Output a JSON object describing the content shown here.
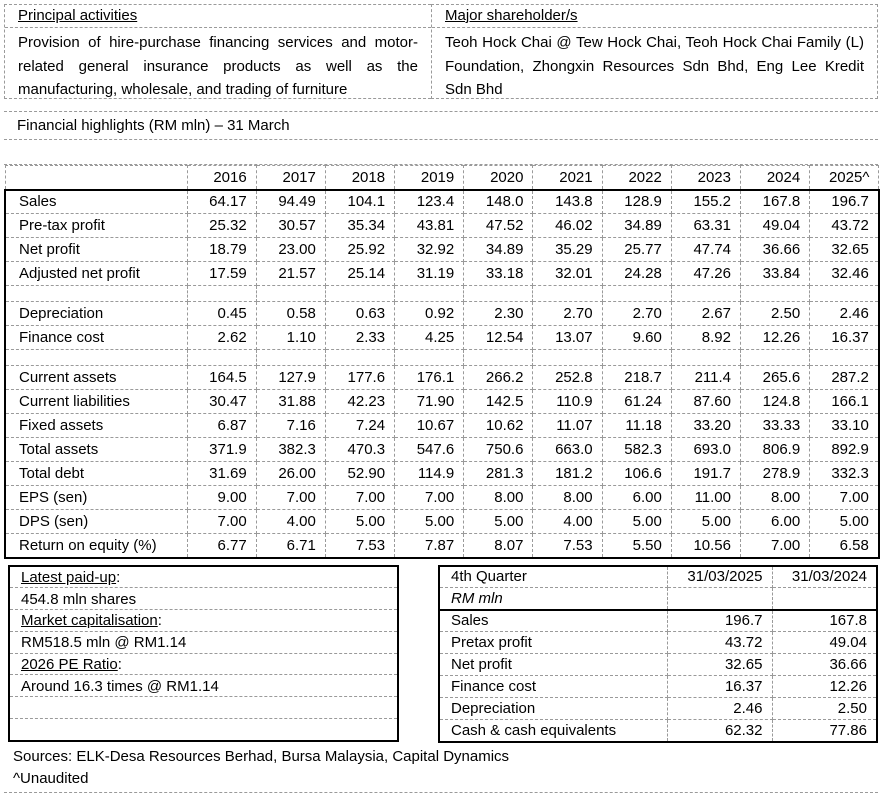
{
  "top": {
    "principal": {
      "title": "Principal activities",
      "body": "Provision of hire-purchase financing services and motor-related general insurance products as well as the manufacturing, wholesale, and trading of furniture"
    },
    "shareholders": {
      "title": "Major shareholder/s",
      "body": "Teoh Hock Chai @ Tew Hock Chai, Teoh Hock Chai Family (L) Foundation, Zhongxin Resources Sdn Bhd, Eng Lee Kredit Sdn Bhd"
    }
  },
  "highlights": {
    "title": "Financial highlights (RM mln) – 31 March",
    "years": [
      "2016",
      "2017",
      "2018",
      "2019",
      "2020",
      "2021",
      "2022",
      "2023",
      "2024",
      "2025^"
    ],
    "rows": [
      {
        "label": "Sales",
        "values": [
          "64.17",
          "94.49",
          "104.1",
          "123.4",
          "148.0",
          "143.8",
          "128.9",
          "155.2",
          "167.8",
          "196.7"
        ]
      },
      {
        "label": "Pre-tax profit",
        "values": [
          "25.32",
          "30.57",
          "35.34",
          "43.81",
          "47.52",
          "46.02",
          "34.89",
          "63.31",
          "49.04",
          "43.72"
        ]
      },
      {
        "label": "Net profit",
        "values": [
          "18.79",
          "23.00",
          "25.92",
          "32.92",
          "34.89",
          "35.29",
          "25.77",
          "47.74",
          "36.66",
          "32.65"
        ]
      },
      {
        "label": "Adjusted net profit",
        "values": [
          "17.59",
          "21.57",
          "25.14",
          "31.19",
          "33.18",
          "32.01",
          "24.28",
          "47.26",
          "33.84",
          "32.46"
        ]
      },
      {
        "label": "",
        "spacer": true,
        "values": []
      },
      {
        "label": "Depreciation",
        "values": [
          "0.45",
          "0.58",
          "0.63",
          "0.92",
          "2.30",
          "2.70",
          "2.70",
          "2.67",
          "2.50",
          "2.46"
        ]
      },
      {
        "label": "Finance cost",
        "values": [
          "2.62",
          "1.10",
          "2.33",
          "4.25",
          "12.54",
          "13.07",
          "9.60",
          "8.92",
          "12.26",
          "16.37"
        ]
      },
      {
        "label": "",
        "spacer": true,
        "values": []
      },
      {
        "label": "Current assets",
        "values": [
          "164.5",
          "127.9",
          "177.6",
          "176.1",
          "266.2",
          "252.8",
          "218.7",
          "211.4",
          "265.6",
          "287.2"
        ]
      },
      {
        "label": "Current liabilities",
        "values": [
          "30.47",
          "31.88",
          "42.23",
          "71.90",
          "142.5",
          "110.9",
          "61.24",
          "87.60",
          "124.8",
          "166.1"
        ]
      },
      {
        "label": "Fixed assets",
        "values": [
          "6.87",
          "7.16",
          "7.24",
          "10.67",
          "10.62",
          "11.07",
          "11.18",
          "33.20",
          "33.33",
          "33.10"
        ]
      },
      {
        "label": "Total assets",
        "values": [
          "371.9",
          "382.3",
          "470.3",
          "547.6",
          "750.6",
          "663.0",
          "582.3",
          "693.0",
          "806.9",
          "892.9"
        ]
      },
      {
        "label": "Total debt",
        "values": [
          "31.69",
          "26.00",
          "52.90",
          "114.9",
          "281.3",
          "181.2",
          "106.6",
          "191.7",
          "278.9",
          "332.3"
        ]
      },
      {
        "label": "EPS (sen)",
        "values": [
          "9.00",
          "7.00",
          "7.00",
          "7.00",
          "8.00",
          "8.00",
          "6.00",
          "11.00",
          "8.00",
          "7.00"
        ]
      },
      {
        "label": "DPS (sen)",
        "values": [
          "7.00",
          "4.00",
          "5.00",
          "5.00",
          "5.00",
          "4.00",
          "5.00",
          "5.00",
          "6.00",
          "5.00"
        ]
      },
      {
        "label": "Return on equity (%)",
        "values": [
          "6.77",
          "6.71",
          "7.53",
          "7.87",
          "8.07",
          "7.53",
          "5.50",
          "10.56",
          "7.00",
          "6.58"
        ]
      }
    ]
  },
  "info_box": {
    "lines": [
      {
        "text": "Latest paid-up",
        "suffix": ":",
        "underline": true
      },
      {
        "text": "454.8 mln shares",
        "suffix": "",
        "underline": false
      },
      {
        "text": "Market capitalisation",
        "suffix": ":",
        "underline": true
      },
      {
        "text": "RM518.5 mln @ RM1.14",
        "suffix": "",
        "underline": false
      },
      {
        "text": "2026 PE Ratio",
        "suffix": ":",
        "underline": true
      },
      {
        "text": "Around 16.3 times @ RM1.14",
        "suffix": "",
        "underline": false
      },
      {
        "text": "",
        "suffix": "",
        "underline": false
      },
      {
        "text": "",
        "suffix": "",
        "underline": false
      }
    ]
  },
  "quarter": {
    "title": "4th Quarter",
    "col1": "31/03/2025",
    "col2": "31/03/2024",
    "unit": "RM mln",
    "rows": [
      {
        "label": "Sales",
        "v1": "196.7",
        "v2": "167.8"
      },
      {
        "label": "Pretax profit",
        "v1": "43.72",
        "v2": "49.04"
      },
      {
        "label": "Net profit",
        "v1": "32.65",
        "v2": "36.66"
      },
      {
        "label": "Finance cost",
        "v1": "16.37",
        "v2": "12.26"
      },
      {
        "label": "Depreciation",
        "v1": "2.46",
        "v2": "2.50"
      },
      {
        "label": "Cash & cash equivalents",
        "v1": "62.32",
        "v2": "77.86"
      }
    ]
  },
  "footer": {
    "sources": "Sources: ELK-Desa Resources Berhad, Bursa Malaysia, Capital Dynamics",
    "note": "^Unaudited"
  }
}
